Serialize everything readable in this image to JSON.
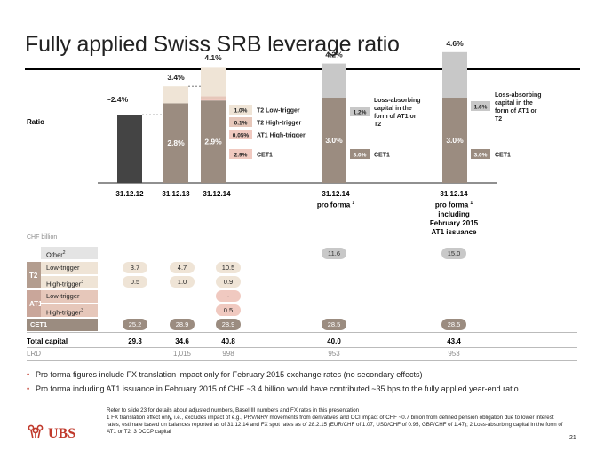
{
  "title": "Fully applied Swiss SRB leverage ratio",
  "colors": {
    "cet1": "#9b8c80",
    "t2_low": "#efe4d6",
    "t2_high": "#e6c7ba",
    "at1_high": "#f0c9c0",
    "pro_forma_top": "#c8c8c8",
    "dark_bar": "#444444",
    "brand_red": "#c0392b"
  },
  "chart_data": {
    "type": "bar",
    "title": "Fully applied Swiss SRB leverage ratio",
    "ylabel": "Ratio",
    "unit": "%",
    "ylim": [
      0,
      5
    ],
    "categories": [
      "31.12.12",
      "31.12.13",
      "31.12.14",
      "31.12.14 pro forma 1",
      "31.12.14 pro forma 1 including February 2015 AT1 issuance"
    ],
    "bars": [
      {
        "category": "31.12.12",
        "total_label": "~2.4%",
        "total": 2.4,
        "segments": [
          {
            "name": "Total",
            "value": 2.4,
            "color": "#444444",
            "label": ""
          }
        ]
      },
      {
        "category": "31.12.13",
        "total_label": "3.4%",
        "total": 3.4,
        "segments": [
          {
            "name": "CET1",
            "value": 2.8,
            "color": "#9b8c80",
            "label": "2.8%"
          },
          {
            "name": "T2",
            "value": 0.6,
            "color": "#efe4d6",
            "label": ""
          }
        ]
      },
      {
        "category": "31.12.14",
        "total_label": "4.1%",
        "total": 4.1,
        "segments": [
          {
            "name": "CET1",
            "value": 2.9,
            "color": "#9b8c80",
            "label": "2.9%"
          },
          {
            "name": "AT1 High-trigger",
            "value": 0.05,
            "color": "#f0c9c0",
            "label": ""
          },
          {
            "name": "T2 High-trigger",
            "value": 0.1,
            "color": "#e6c7ba",
            "label": ""
          },
          {
            "name": "T2 Low-trigger",
            "value": 1.0,
            "color": "#efe4d6",
            "label": ""
          }
        ]
      },
      {
        "category": "31.12.14 pro forma",
        "total_label": "4.2%",
        "total": 4.2,
        "segments": [
          {
            "name": "CET1",
            "value": 3.0,
            "color": "#9b8c80",
            "label": "3.0%"
          },
          {
            "name": "Loss-absorbing capital in the form of AT1 or T2",
            "value": 1.2,
            "color": "#c8c8c8",
            "label": ""
          }
        ]
      },
      {
        "category": "31.12.14 pro forma including AT1 issuance",
        "total_label": "4.6%",
        "total": 4.6,
        "segments": [
          {
            "name": "CET1",
            "value": 3.0,
            "color": "#9b8c80",
            "label": "3.0%"
          },
          {
            "name": "Loss-absorbing capital in the form of AT1 or T2",
            "value": 1.6,
            "color": "#c8c8c8",
            "label": ""
          }
        ]
      }
    ],
    "callouts": [
      {
        "bar": 2,
        "segment": "T2 Low-trigger",
        "value_label": "1.0%",
        "text": "T2 Low-trigger",
        "color": "#efe4d6",
        "text_color": "#222222"
      },
      {
        "bar": 2,
        "segment": "T2 High-trigger",
        "value_label": "0.1%",
        "text": "T2 High-trigger",
        "color": "#e6c7ba",
        "text_color": "#222222"
      },
      {
        "bar": 2,
        "segment": "AT1 High-trigger",
        "value_label": "0.05%",
        "text": "AT1 High-trigger",
        "color": "#f0c9c0",
        "text_color": "#222222"
      },
      {
        "bar": 2,
        "segment": "CET1",
        "value_label": "2.9%",
        "text": "CET1",
        "color": "#f0c9c0",
        "text_color": "#222222"
      },
      {
        "bar": 3,
        "segment": "Loss-absorbing capital in the form of AT1 or T2",
        "value_label": "1.2%",
        "text": "Loss-absorbing capital in the form of AT1 or T2",
        "color": "#c8c8c8",
        "text_color": "#222222"
      },
      {
        "bar": 3,
        "segment": "CET1",
        "value_label": "3.0%",
        "text": "CET1",
        "color": "#9b8c80",
        "text_color": "#ffffff"
      },
      {
        "bar": 4,
        "segment": "Loss-absorbing capital in the form of AT1 or T2",
        "value_label": "1.6%",
        "text": "Loss-absorbing capital in the form of AT1 or T2",
        "color": "#c8c8c8",
        "text_color": "#222222"
      },
      {
        "bar": 4,
        "segment": "CET1",
        "value_label": "3.0%",
        "text": "CET1",
        "color": "#9b8c80",
        "text_color": "#ffffff"
      }
    ]
  },
  "axis": {
    "ratio_label": "Ratio"
  },
  "categories_display": [
    {
      "line1": "31.12.12",
      "line2": "",
      "line3": "",
      "line4": ""
    },
    {
      "line1": "31.12.13",
      "line2": "",
      "line3": "",
      "line4": ""
    },
    {
      "line1": "31.12.14",
      "line2": "",
      "line3": "",
      "line4": ""
    },
    {
      "line1": "31.12.14",
      "line2": "pro forma",
      "sup": "1",
      "line3": "",
      "line4": ""
    },
    {
      "line1": "31.12.14",
      "line2": "pro forma",
      "sup": "1",
      "line3": "including",
      "line4": "February 2015",
      "line5": "AT1 issuance"
    }
  ],
  "table": {
    "unit_label": "CHF billion",
    "rows": {
      "other": {
        "label": "Other",
        "sup": "2",
        "values": [
          "",
          "",
          "",
          "11.6",
          "15.0"
        ]
      },
      "t2_low": {
        "label": "Low-trigger",
        "values": [
          "3.7",
          "4.7",
          "10.5",
          "",
          ""
        ]
      },
      "t2_high": {
        "label": "High-trigger",
        "sup": "3",
        "values": [
          "0.5",
          "1.0",
          "0.9",
          "",
          ""
        ]
      },
      "at1_low": {
        "label": "Low-trigger",
        "values": [
          "",
          "",
          "-",
          "",
          ""
        ]
      },
      "at1_high": {
        "label": "High-trigger",
        "sup": "3",
        "values": [
          "",
          "",
          "0.5",
          "",
          ""
        ]
      },
      "cet1": {
        "label": "CET1",
        "values": [
          "25.2",
          "28.9",
          "28.9",
          "28.5",
          "28.5"
        ]
      }
    },
    "groups": {
      "t2": "T2",
      "at1": "AT1"
    },
    "total_capital": {
      "label": "Total capital",
      "values": [
        "29.3",
        "34.6",
        "40.8",
        "40.0",
        "43.4"
      ]
    },
    "lrd": {
      "label": "LRD",
      "values": [
        "",
        "1,015",
        "998",
        "953",
        "953"
      ]
    }
  },
  "bullets": [
    "Pro forma figures include FX translation impact only for February 2015 exchange rates (no secondary effects)",
    "Pro forma including AT1 issuance in February 2015 of CHF ~3.4 billion would have contributed ~35 bps to the fully applied year-end ratio"
  ],
  "footnotes": {
    "line1": "Refer to slide 23 for details about adjusted numbers, Basel III numbers and FX rates in this presentation",
    "line2": "1 FX translation effect only, i.e., excludes impact of e.g., PRV/NRV movements from derivatives and OCI impact of CHF ~0.7 billion from defined pension obligation due to lower interest rates, estimate based on balances reported as of 31.12.14 and FX spot rates as of 28.2.15 (EUR/CHF of 1.07, USD/CHF of 0.95, GBP/CHF of 1.47); 2 Loss-absorbing capital in the form of AT1 or T2; 3 DCCP capital"
  },
  "logo": {
    "text": "UBS",
    "icon": "keys-icon"
  },
  "page_number": "21"
}
